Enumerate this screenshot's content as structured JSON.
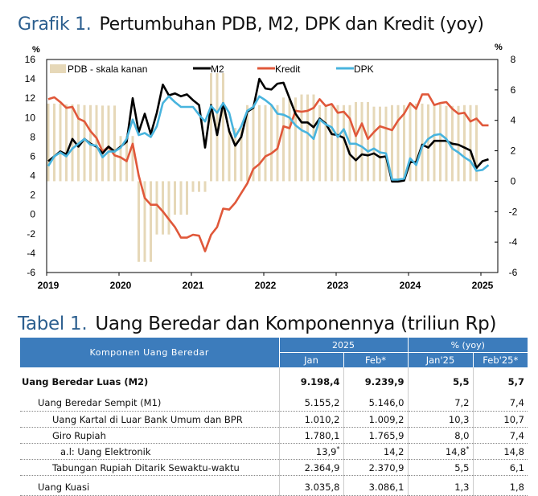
{
  "chart_title": {
    "number": "Grafik 1.",
    "text": "Pertumbuhan PDB, M2, DPK dan Kredit (yoy)"
  },
  "table_title": {
    "number": "Tabel 1.",
    "text": "Uang Beredar dan Komponennya (triliun Rp)"
  },
  "colors": {
    "m2": "#000000",
    "kredit": "#e0583a",
    "dpk": "#48b4de",
    "pdb": "#e6d8b8",
    "header": "#3c7cbc",
    "title_num": "#2c5f8f"
  },
  "chart_data": {
    "type": "line",
    "title": "Pertumbuhan PDB, M2, DPK dan Kredit (yoy)",
    "ylabel_left": "%",
    "ylabel_right": "%",
    "ylim_left": [
      -6,
      16
    ],
    "ylim_right": [
      -6,
      8
    ],
    "yticks_left": [
      "16",
      "14",
      "12",
      "10",
      "8",
      "6",
      "4",
      "2",
      "0",
      "-2",
      "-4",
      "-6"
    ],
    "yticks_right": [
      "8",
      "6",
      "4",
      "2",
      "0",
      "-2",
      "-4",
      "-6"
    ],
    "xticks": [
      "2019",
      "2020",
      "2021",
      "2022",
      "2023",
      "2024",
      "2025"
    ],
    "x_start": "2019-01",
    "legend": [
      "PDB - skala kanan",
      "M2",
      "Kredit",
      "DPK"
    ],
    "legend_placement": "top",
    "pdb_quarterly": {
      "name": "PDB - skala kanan",
      "axis": "right",
      "values": [
        5.1,
        5.05,
        5.0,
        4.97,
        2.97,
        -5.3,
        -3.5,
        -2.2,
        -0.7,
        7.1,
        3.5,
        5.0,
        5.0,
        5.5,
        5.7,
        5.0,
        5.0,
        5.2,
        4.9,
        5.0,
        5.1,
        5.05,
        4.95,
        5.0
      ]
    },
    "series": [
      {
        "name": "M2",
        "axis": "left",
        "values": [
          5.5,
          6.0,
          6.5,
          6.2,
          7.8,
          7.0,
          7.8,
          7.3,
          7.0,
          6.3,
          7.0,
          6.5,
          7.0,
          7.5,
          12.0,
          8.5,
          10.4,
          8.3,
          10.5,
          13.4,
          12.3,
          12.5,
          12.2,
          12.4,
          11.8,
          11.3,
          6.9,
          11.3,
          8.2,
          11.5,
          8.6,
          7.1,
          8.0,
          10.6,
          11.0,
          14.0,
          13.0,
          12.9,
          13.5,
          13.6,
          12.0,
          10.4,
          9.5,
          9.5,
          9.0,
          9.9,
          9.4,
          8.3,
          8.2,
          7.9,
          6.2,
          5.6,
          6.2,
          6.1,
          6.3,
          5.9,
          6.0,
          3.4,
          3.4,
          3.5,
          5.4,
          5.4,
          7.2,
          6.9,
          7.6,
          7.6,
          7.6,
          7.3,
          7.2,
          6.9,
          6.6,
          4.8,
          5.5,
          5.7
        ]
      },
      {
        "name": "Kredit",
        "axis": "left",
        "values": [
          11.9,
          12.1,
          11.6,
          11.0,
          11.1,
          9.9,
          9.6,
          8.6,
          7.9,
          6.5,
          7.0,
          6.1,
          5.9,
          5.5,
          7.3,
          4.0,
          1.7,
          1.0,
          1.0,
          0.3,
          -0.5,
          -1.3,
          -2.4,
          -2.4,
          -2.1,
          -2.2,
          -3.8,
          -2.1,
          -1.3,
          0.6,
          0.5,
          1.2,
          2.2,
          3.2,
          4.7,
          5.2,
          6.0,
          6.3,
          6.8,
          9.1,
          8.9,
          10.7,
          10.6,
          10.7,
          11.0,
          11.9,
          11.2,
          11.4,
          10.5,
          10.6,
          9.9,
          8.1,
          9.4,
          7.8,
          8.5,
          9.1,
          8.9,
          8.7,
          9.7,
          10.4,
          11.5,
          10.9,
          12.4,
          12.4,
          11.3,
          11.5,
          11.6,
          10.9,
          10.4,
          10.5,
          9.6,
          9.9,
          9.2,
          9.2
        ]
      },
      {
        "name": "DPK",
        "axis": "left",
        "values": [
          5.0,
          6.0,
          6.4,
          6.0,
          6.8,
          7.3,
          7.8,
          7.2,
          7.1,
          5.9,
          6.5,
          6.5,
          6.9,
          7.8,
          9.8,
          8.2,
          8.4,
          8.0,
          9.1,
          11.5,
          12.2,
          11.6,
          11.1,
          11.1,
          11.1,
          10.3,
          9.6,
          11.2,
          10.5,
          11.5,
          10.5,
          8.0,
          9.1,
          10.7,
          11.1,
          12.2,
          11.8,
          11.3,
          10.4,
          10.3,
          10.0,
          9.2,
          8.7,
          8.4,
          7.8,
          9.8,
          9.3,
          9.0,
          8.0,
          8.8,
          7.3,
          7.3,
          7.0,
          6.5,
          6.8,
          6.4,
          6.3,
          3.6,
          3.6,
          3.7,
          5.8,
          5.1,
          7.0,
          7.8,
          8.2,
          8.3,
          7.8,
          6.8,
          6.4,
          5.9,
          5.5,
          4.5,
          4.6,
          5.1
        ]
      }
    ]
  },
  "table": {
    "header": {
      "component": "Komponen Uang Beredar",
      "group_level": "2025",
      "group_growth": "% (yoy)",
      "cols": [
        "Jan",
        "Feb*",
        "Jan'25",
        "Feb'25*"
      ]
    },
    "rows": [
      {
        "label": "Uang Beredar Luas (M2)",
        "values": [
          "9.198,4",
          "9.239,9",
          "5,5",
          "5,7"
        ]
      },
      {
        "label": "Uang Beredar Sempit (M1)",
        "values": [
          "5.155,2",
          "5.146,0",
          "7,2",
          "7,4"
        ]
      },
      {
        "label": "Uang Kartal di Luar Bank Umum dan BPR",
        "values": [
          "1.010,2",
          "1.009,2",
          "10,3",
          "10,7"
        ]
      },
      {
        "label": "Giro Rupiah",
        "values": [
          "1.780,1",
          "1.765,9",
          "8,0",
          "7,4"
        ]
      },
      {
        "label": "a.l: Uang Elektronik",
        "values": [
          "13,9",
          "14,2",
          "14,8",
          "14,8"
        ],
        "marks": [
          "*",
          "",
          "*",
          ""
        ]
      },
      {
        "label": "Tabungan Rupiah Ditarik Sewaktu-waktu",
        "values": [
          "2.364,9",
          "2.370,9",
          "5,5",
          "6,1"
        ]
      },
      {
        "label": "Uang Kuasi",
        "values": [
          "3.035,8",
          "3.086,1",
          "1,3",
          "1,8"
        ]
      }
    ]
  }
}
